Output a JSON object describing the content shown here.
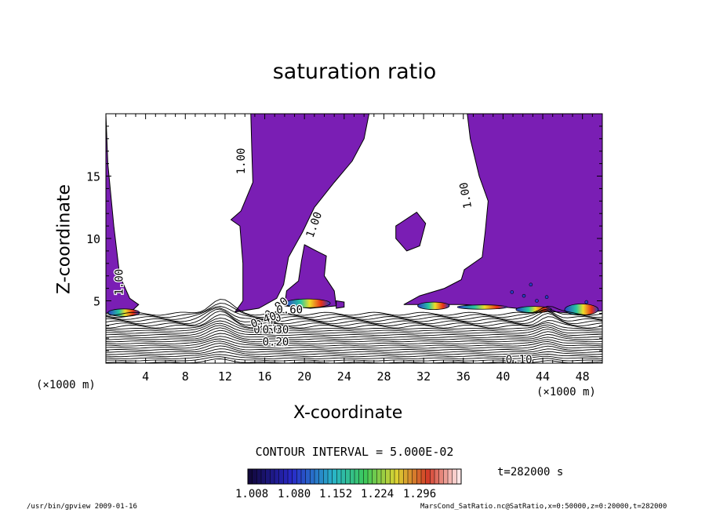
{
  "chart_data": {
    "type": "heatmap",
    "title": "saturation ratio",
    "xlabel": "X-coordinate",
    "ylabel": "Z-coordinate",
    "x_unit": "(×1000 m)",
    "y_unit": "(×1000 m)",
    "xlim": [
      0,
      50
    ],
    "ylim": [
      0,
      20
    ],
    "xticks": [
      4,
      8,
      12,
      16,
      20,
      24,
      28,
      32,
      36,
      40,
      44,
      48
    ],
    "yticks": [
      5,
      10,
      15
    ],
    "fill_range": [
      1.008,
      1.296
    ],
    "colorbar_ticks": [
      "1.008",
      "1.080",
      "1.152",
      "1.224",
      "1.296"
    ],
    "contour_interval_label": "CONTOUR INTERVAL = 5.000E-02",
    "contour_labels": [
      {
        "text": "1.00",
        "x": 1.7,
        "z": 6.5,
        "angle": -90
      },
      {
        "text": "1.00",
        "x": 14.0,
        "z": 16.2,
        "angle": -90
      },
      {
        "text": "1.00",
        "x": 21.3,
        "z": 11.0,
        "angle": -70
      },
      {
        "text": "1.00",
        "x": 36.6,
        "z": 13.5,
        "angle": -100
      },
      {
        "text": "0.90",
        "x": 17.4,
        "z": 4.2,
        "angle": -40
      },
      {
        "text": "0.70",
        "x": 16.5,
        "z": 3.1,
        "angle": -20
      },
      {
        "text": "0.60",
        "x": 18.5,
        "z": 4.0,
        "angle": 0
      },
      {
        "text": "0.50",
        "x": 16.2,
        "z": 2.4,
        "angle": 0
      },
      {
        "text": "0.40",
        "x": 16.0,
        "z": 3.2,
        "angle": -20
      },
      {
        "text": "0.30",
        "x": 17.1,
        "z": 2.4,
        "angle": 0
      },
      {
        "text": "0.20",
        "x": 17.1,
        "z": 1.4,
        "angle": 0
      },
      {
        "text": "0.10",
        "x": 41.6,
        "z": 0.0,
        "angle": 0
      }
    ],
    "supersaturated_regions_xz": [
      [
        [
          0,
          20
        ],
        [
          0.2,
          16
        ],
        [
          0.8,
          11
        ],
        [
          1.4,
          7
        ],
        [
          2.4,
          5.2
        ],
        [
          3.3,
          4.7
        ],
        [
          2.5,
          4.1
        ],
        [
          0,
          4.0
        ]
      ],
      [
        [
          14.6,
          20
        ],
        [
          26.5,
          20
        ],
        [
          26.0,
          18
        ],
        [
          24.8,
          16.2
        ],
        [
          23.0,
          14.5
        ],
        [
          21.0,
          12.5
        ],
        [
          19.8,
          10.5
        ],
        [
          18.4,
          8.5
        ],
        [
          17.9,
          6.3
        ],
        [
          17.2,
          5.2
        ],
        [
          15.4,
          4.4
        ],
        [
          13.0,
          4.1
        ],
        [
          13.8,
          5.0
        ],
        [
          13.8,
          8.0
        ],
        [
          13.5,
          11.0
        ],
        [
          12.6,
          11.5
        ],
        [
          13.6,
          12.2
        ],
        [
          14.8,
          14.5
        ],
        [
          14.7,
          17.0
        ]
      ],
      [
        [
          20.0,
          9.5
        ],
        [
          21.2,
          9.0
        ],
        [
          22.2,
          8.6
        ],
        [
          22.0,
          7.0
        ],
        [
          23.0,
          5.8
        ],
        [
          23.2,
          4.6
        ],
        [
          20.6,
          4.4
        ],
        [
          18.0,
          4.6
        ],
        [
          18.2,
          5.8
        ],
        [
          19.4,
          6.6
        ],
        [
          19.7,
          8.2
        ]
      ],
      [
        [
          23.2,
          5.0
        ],
        [
          24.0,
          4.9
        ],
        [
          24.0,
          4.5
        ],
        [
          23.2,
          4.4
        ]
      ],
      [
        [
          29.2,
          11.0
        ],
        [
          31.3,
          12.1
        ],
        [
          32.2,
          11.2
        ],
        [
          31.6,
          9.4
        ],
        [
          30.3,
          9.0
        ],
        [
          29.2,
          10.0
        ]
      ],
      [
        [
          36.4,
          20
        ],
        [
          50,
          20
        ],
        [
          50,
          4.2
        ],
        [
          47.0,
          4.0
        ],
        [
          44.0,
          4.2
        ],
        [
          40.0,
          4.5
        ],
        [
          36.0,
          4.7
        ],
        [
          32.0,
          4.7
        ],
        [
          30.0,
          4.7
        ],
        [
          31.6,
          5.4
        ],
        [
          34.1,
          6.0
        ],
        [
          35.8,
          6.7
        ],
        [
          36.1,
          7.5
        ],
        [
          37.9,
          8.5
        ],
        [
          38.2,
          10.5
        ],
        [
          38.5,
          13.0
        ],
        [
          37.6,
          15.0
        ],
        [
          36.7,
          18.0
        ]
      ]
    ]
  },
  "labels": {
    "unit_left": "(×1000 m)",
    "unit_right": "(×1000 m)",
    "time_stamp": "t=282000 s",
    "footer_left": "/usr/bin/gpview  2009-01-16",
    "footer_right": "MarsCond_SatRatio.nc@SatRatio,x=0:50000,z=0:20000,t=282000"
  },
  "colors": {
    "cloud_fill": "#7a1eb4",
    "colorbar_low": "#140a3c",
    "colorbar_high": "#ffffff",
    "contour_line": "#000000"
  }
}
